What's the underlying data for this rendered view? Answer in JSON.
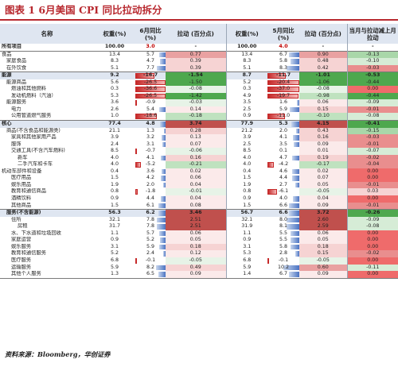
{
  "title": "图表 1   6月美国 CPI 同比拉动拆分",
  "header": {
    "name": "名称",
    "w_jun": "权重(%)",
    "yoy_jun": "6月同比 (%)",
    "pull_jun": "拉动 (百分点)",
    "w_may": "权重(%)",
    "yoy_may": "5月同比 (%)",
    "pull_may": "拉动 (百分点)",
    "delta": "当月与拉动减上月拉动"
  },
  "colors": {
    "pos": "#4a73c2",
    "neg": "#c62a2a",
    "accent": "#b8292f",
    "header_bg": "#dfe6f1"
  },
  "rows": [
    {
      "name": "所有项目",
      "w1": "100.00",
      "y1": "3.0",
      "p1": "-",
      "w2": "100.00",
      "y2": "4.0",
      "p2": "-",
      "d": "-"
    },
    {
      "name": "食品",
      "w1": "13.4",
      "y1": "5.7",
      "p1": "0.77",
      "w2": "13.4",
      "y2": "6.7",
      "p2": "0.90",
      "d": "-0.13"
    },
    {
      "name": "家庭食品",
      "w1": "8.3",
      "y1": "4.7",
      "p1": "0.39",
      "w2": "8.3",
      "y2": "5.8",
      "p2": "0.48",
      "d": "-0.10"
    },
    {
      "name": "在外饮食",
      "w1": "5.1",
      "y1": "7.7",
      "p1": "0.39",
      "w2": "5.1",
      "y2": "8.3",
      "p2": "0.42",
      "d": "-0.03"
    },
    {
      "name": "能源",
      "w1": "9.2",
      "y1": "-16.7",
      "p1": "-1.54",
      "w2": "8.7",
      "y2": "-11.7",
      "p2": "-1.01",
      "d": "-0.53"
    },
    {
      "name": "能源商品",
      "w1": "5.6",
      "y1": "-26.5",
      "p1": "-1.50",
      "w2": "5.2",
      "y2": "-20.4",
      "p2": "-1.06",
      "d": "-0.44"
    },
    {
      "name": "燃油和其他燃料",
      "w1": "0.3",
      "y1": "-36.6",
      "p1": "-0.08",
      "w2": "0.3",
      "y2": "-37.0",
      "p2": "-0.08",
      "d": "0.00"
    },
    {
      "name": "发动机燃料（汽油）",
      "w1": "5.3",
      "y1": "-26.5",
      "p1": "-1.42",
      "w2": "4.9",
      "y2": "-19.7",
      "p2": "-0.98",
      "d": "-0.44"
    },
    {
      "name": "能源服务",
      "w1": "3.6",
      "y1": "-0.9",
      "p1": "-0.03",
      "w2": "3.5",
      "y2": "1.6",
      "p2": "0.06",
      "d": "-0.09"
    },
    {
      "name": "电力",
      "w1": "2.6",
      "y1": "5.4",
      "p1": "0.14",
      "w2": "2.5",
      "y2": "5.9",
      "p2": "0.15",
      "d": "-0.01"
    },
    {
      "name": "公用管道燃气服务",
      "w1": "1.0",
      "y1": "-18.6",
      "p1": "-0.18",
      "w2": "0.9",
      "y2": "-11.0",
      "p2": "-0.10",
      "d": "-0.08"
    },
    {
      "name": "核心",
      "w1": "77.4",
      "y1": "4.8",
      "p1": "3.74",
      "w2": "77.9",
      "y2": "5.3",
      "p2": "4.15",
      "d": "-0.41"
    },
    {
      "name": "商品(不含食品和能源类)",
      "w1": "21.1",
      "y1": "1.3",
      "p1": "0.28",
      "w2": "21.2",
      "y2": "2.0",
      "p2": "0.43",
      "d": "-0.15"
    },
    {
      "name": "家具和其他家用产品",
      "w1": "3.9",
      "y1": "3.2",
      "p1": "0.13",
      "w2": "3.9",
      "y2": "4.1",
      "p2": "0.16",
      "d": "-0.03"
    },
    {
      "name": "服饰",
      "w1": "2.4",
      "y1": "3.1",
      "p1": "0.07",
      "w2": "2.5",
      "y2": "3.5",
      "p2": "0.09",
      "d": "-0.01"
    },
    {
      "name": "交通工具(不含汽车燃料)",
      "w1": "8.5",
      "y1": "-0.7",
      "p1": "-0.06",
      "w2": "8.5",
      "y2": "0.1",
      "p2": "0.01",
      "d": "-0.07"
    },
    {
      "name": "新车",
      "w1": "4.0",
      "y1": "4.1",
      "p1": "0.16",
      "w2": "4.0",
      "y2": "4.7",
      "p2": "0.19",
      "d": "-0.02"
    },
    {
      "name": "二手汽车和卡车",
      "w1": "4.0",
      "y1": "-5.2",
      "p1": "-0.21",
      "w2": "4.0",
      "y2": "-4.2",
      "p2": "-0.17",
      "d": "-0.04"
    },
    {
      "name": "机动车部件和设备",
      "w1": "0.4",
      "y1": "3.6",
      "p1": "0.02",
      "w2": "0.4",
      "y2": "4.6",
      "p2": "0.02",
      "d": "0.00"
    },
    {
      "name": "医疗用品",
      "w1": "1.5",
      "y1": "4.2",
      "p1": "0.06",
      "w2": "1.5",
      "y2": "4.4",
      "p2": "0.07",
      "d": "0.00"
    },
    {
      "name": "娱乐用品",
      "w1": "1.9",
      "y1": "2.0",
      "p1": "0.04",
      "w2": "1.9",
      "y2": "2.7",
      "p2": "0.05",
      "d": "-0.01"
    },
    {
      "name": "教育和通信商品",
      "w1": "0.8",
      "y1": "-1.8",
      "p1": "-0.01",
      "w2": "0.8",
      "y2": "-6.1",
      "p2": "-0.05",
      "d": "0.03"
    },
    {
      "name": "酒精饮料",
      "w1": "0.9",
      "y1": "4.4",
      "p1": "0.04",
      "w2": "0.9",
      "y2": "4.0",
      "p2": "0.04",
      "d": "0.00"
    },
    {
      "name": "其他商品",
      "w1": "1.5",
      "y1": "6.1",
      "p1": "0.08",
      "w2": "1.5",
      "y2": "6.6",
      "p2": "0.09",
      "d": "-0.01"
    },
    {
      "name": "服务(不含能源)",
      "w1": "56.3",
      "y1": "6.2",
      "p1": "3.46",
      "w2": "56.7",
      "y2": "6.6",
      "p2": "3.72",
      "d": "-0.26"
    },
    {
      "name": "住所",
      "w1": "32.1",
      "y1": "7.8",
      "p1": "2.51",
      "w2": "32.1",
      "y2": "8.0",
      "p2": "2.60",
      "d": "-0.09"
    },
    {
      "name": "房租",
      "w1": "31.7",
      "y1": "7.8",
      "p1": "2.51",
      "w2": "31.9",
      "y2": "8.1",
      "p2": "2.59",
      "d": "-0.08"
    },
    {
      "name": "水、下水道和垃圾回收",
      "w1": "1.1",
      "y1": "5.7",
      "p1": "0.06",
      "w2": "1.1",
      "y2": "5.5",
      "p2": "0.06",
      "d": "0.00"
    },
    {
      "name": "家庭运营",
      "w1": "0.9",
      "y1": "5.2",
      "p1": "0.05",
      "w2": "0.9",
      "y2": "5.5",
      "p2": "0.05",
      "d": "0.00"
    },
    {
      "name": "娱乐服务",
      "w1": "3.1",
      "y1": "5.9",
      "p1": "0.18",
      "w2": "3.1",
      "y2": "5.8",
      "p2": "0.18",
      "d": "0.00"
    },
    {
      "name": "教育和通信服务",
      "w1": "5.2",
      "y1": "2.4",
      "p1": "0.12",
      "w2": "5.3",
      "y2": "2.8",
      "p2": "0.15",
      "d": "-0.02"
    },
    {
      "name": "医疗服务",
      "w1": "6.8",
      "y1": "-0.1",
      "p1": "-0.05",
      "w2": "6.8",
      "y2": "-0.1",
      "p2": "-0.05",
      "d": "0.00"
    },
    {
      "name": "运输服务",
      "w1": "5.9",
      "y1": "8.2",
      "p1": "0.49",
      "w2": "5.9",
      "y2": "10.2",
      "p2": "0.60",
      "d": "-0.11"
    },
    {
      "name": "其他个人服务",
      "w1": "1.3",
      "y1": "6.5",
      "p1": "0.09",
      "w2": "1.4",
      "y2": "6.7",
      "p2": "0.09",
      "d": "0.00"
    }
  ],
  "source": "资料来源：Bloomberg，华创证券"
}
